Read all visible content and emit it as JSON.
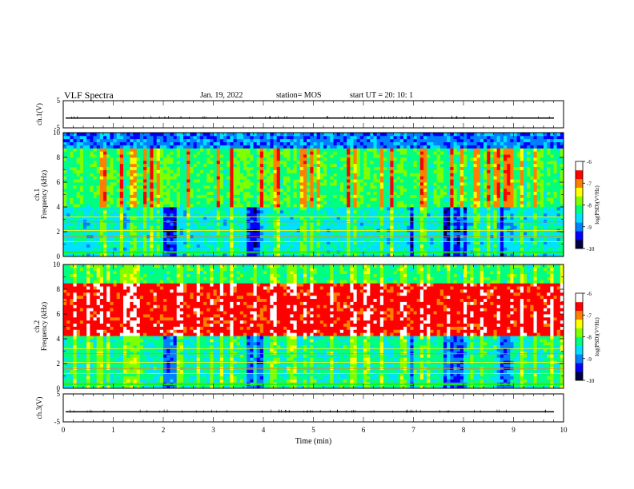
{
  "header": {
    "title": "VLF Spectra",
    "date": "Jan. 19, 2022",
    "station": "station= MOS",
    "start": "start  UT =   20: 10: 1"
  },
  "chart_data": [
    {
      "type": "line",
      "ylabel": "ch.1(V)",
      "ylim": [
        -5,
        5
      ],
      "yticks": [
        5,
        -5
      ],
      "xlim": [
        0,
        10
      ],
      "series": [
        {
          "values": [
            -1.4,
            -1.4
          ]
        }
      ]
    },
    {
      "type": "heatmap",
      "ylabel": "ch.1\nFrequency (kHz)",
      "ylim": [
        0,
        10
      ],
      "yticks": [
        0,
        2,
        4,
        6,
        8,
        10
      ],
      "xlim": [
        0,
        10
      ],
      "colorbar": {
        "label": "log(PSD)(V²/Hz)",
        "ticks": [
          -6,
          -7,
          -8,
          -9,
          -10
        ],
        "range": [
          -10,
          -6
        ]
      },
      "description_bands": [
        {
          "freq": [
            8.5,
            10
          ],
          "level": "-9 to -10 (blue/black)"
        },
        {
          "freq": [
            4,
            8.5
          ],
          "level": "-7 to -8 (green/yellow with red vertical streaks)"
        },
        {
          "freq": [
            0,
            4
          ],
          "level": "-8 to -10 (green/blue, horizontal lines near 0.4, 1.2, 1.6, 2.1, 2.8, 3.2 kHz)"
        }
      ]
    },
    {
      "type": "heatmap",
      "ylabel": "ch.2\nFrequency (kHz)",
      "ylim": [
        0,
        10
      ],
      "yticks": [
        0,
        2,
        4,
        6,
        8,
        10
      ],
      "xlim": [
        0,
        10
      ],
      "colorbar": {
        "label": "log(PSD)(V²/Hz)",
        "ticks": [
          -6,
          -7,
          -8,
          -9,
          -10
        ],
        "range": [
          -10,
          -6
        ]
      },
      "description_bands": [
        {
          "freq": [
            8.5,
            10
          ],
          "level": "-8 (green/cyan)"
        },
        {
          "freq": [
            4,
            8.5
          ],
          "level": "-6.5 to -7 (red/pink)"
        },
        {
          "freq": [
            0,
            4
          ],
          "level": "-8 to -10 (green/blue)"
        }
      ]
    },
    {
      "type": "line",
      "ylabel": "ch.3(V)",
      "ylim": [
        -5,
        5
      ],
      "yticks": [
        5,
        -5
      ],
      "xlim": [
        0,
        10
      ],
      "xlabel": "Time  (min)",
      "xticks": [
        0,
        1,
        2,
        3,
        4,
        5,
        6,
        7,
        8,
        9,
        10
      ],
      "series": [
        {
          "values": [
            -1.4,
            -1.4
          ]
        }
      ]
    }
  ],
  "colors": {
    "colormap": [
      "#000040",
      "#0000ff",
      "#0080ff",
      "#00e0ff",
      "#00ff80",
      "#80ff00",
      "#ffff00",
      "#ff8000",
      "#ff0000",
      "#ffffff"
    ]
  }
}
